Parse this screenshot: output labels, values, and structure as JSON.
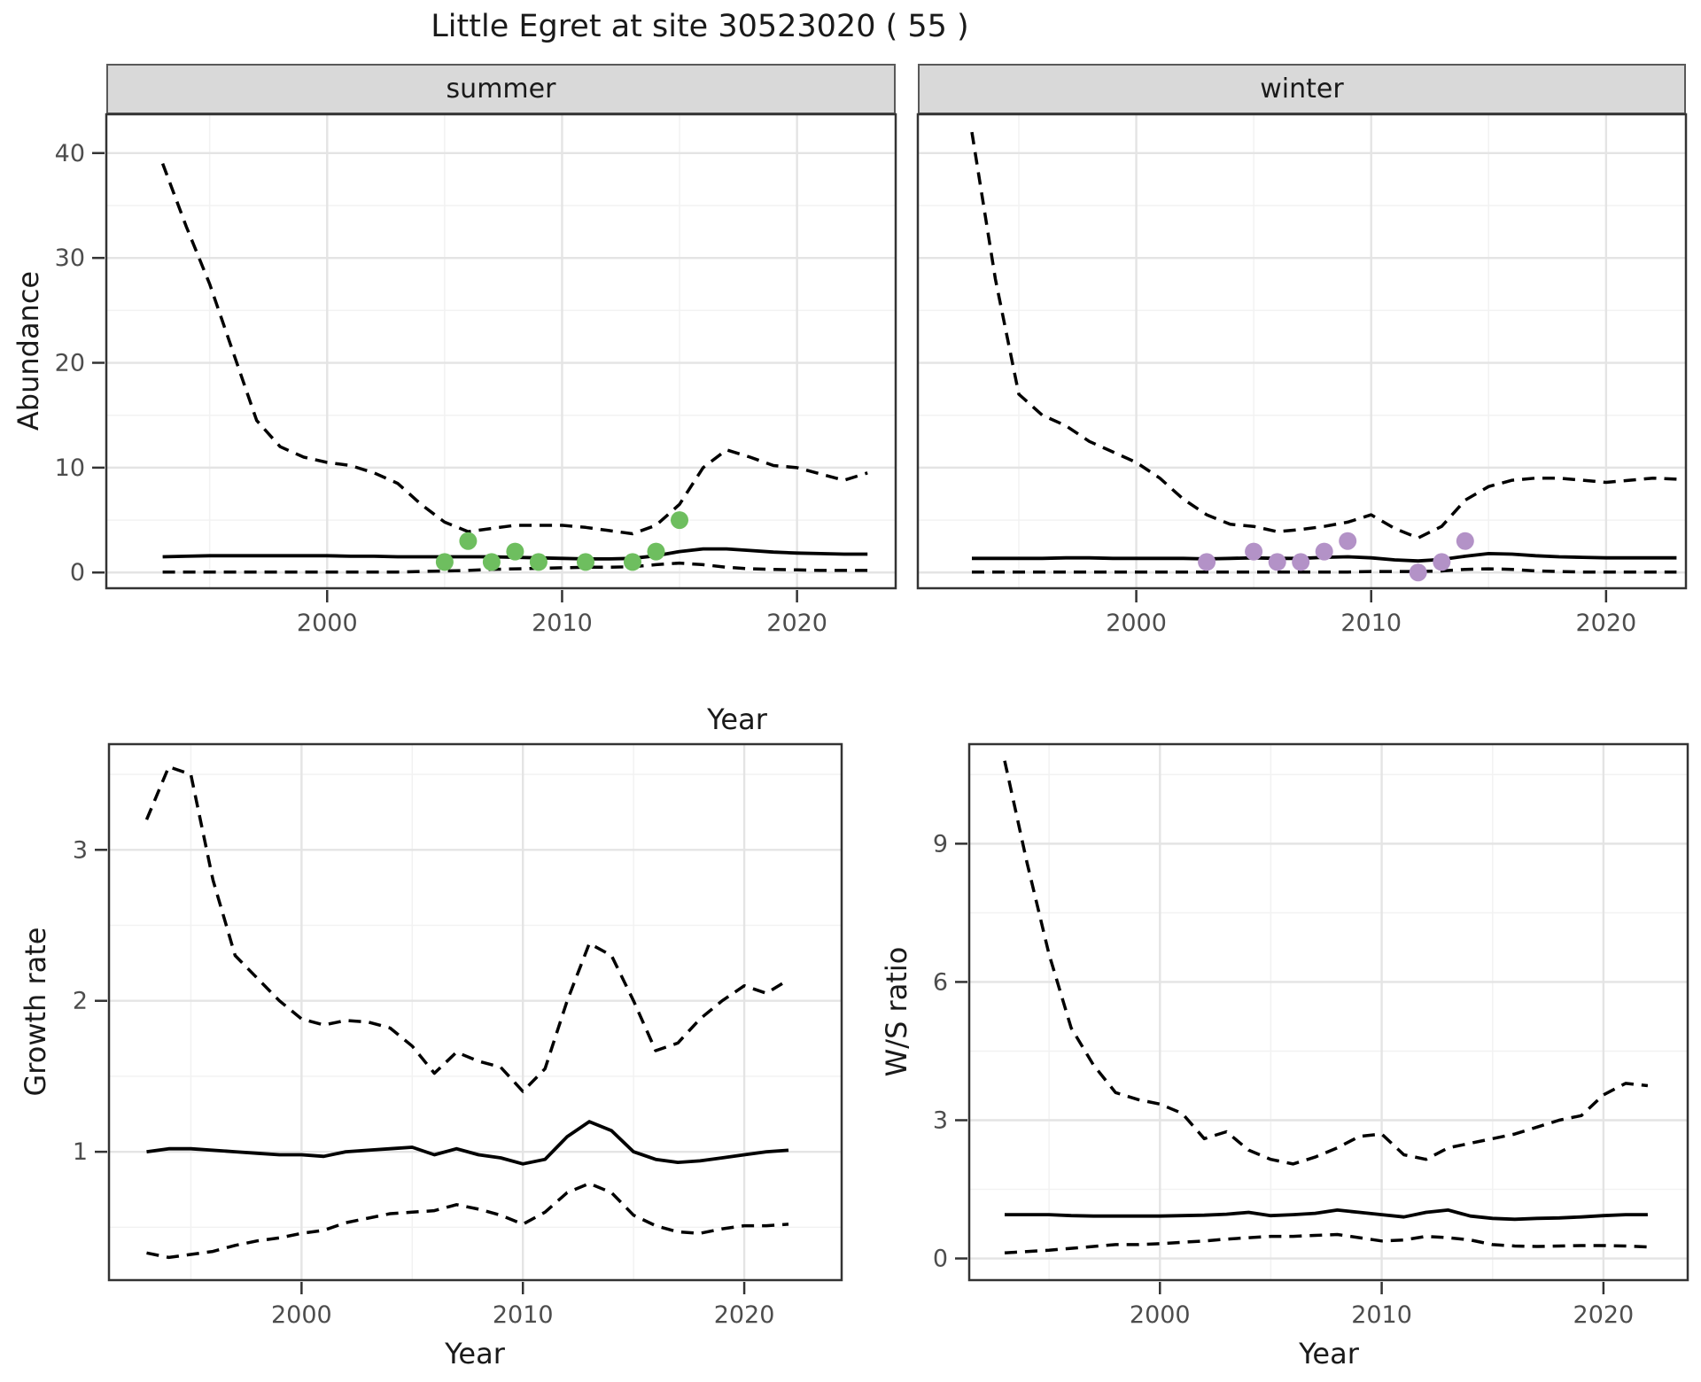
{
  "title": "Little Egret at site 30523020 ( 55 )",
  "axes": {
    "year_label": "Year",
    "abundance_label": "Abundance"
  },
  "colors": {
    "background": "#FFFFFF",
    "line": "#000000",
    "grid_major": "#E4E4E4",
    "grid_minor": "#F2F2F2",
    "strip_bg": "#D9D9D9",
    "panel_border": "#333333",
    "tick_mark": "#333333",
    "tick_label": "#4D4D4D",
    "text": "#1A1A1A",
    "summer_point": "#6EBE5F",
    "winter_point": "#B392C7"
  },
  "chart_data": [
    {
      "id": "abundance-summer",
      "type": "line",
      "facet": "summer",
      "xlabel": "Year",
      "ylabel": "Abundance",
      "years": [
        1993,
        1994,
        1995,
        1996,
        1997,
        1998,
        1999,
        2000,
        2001,
        2002,
        2003,
        2004,
        2005,
        2006,
        2007,
        2008,
        2009,
        2010,
        2011,
        2012,
        2013,
        2014,
        2015,
        2016,
        2017,
        2018,
        2019,
        2020,
        2021,
        2022,
        2023
      ],
      "series": [
        {
          "name": "lower_ci",
          "style": "dashed",
          "values": [
            0.05,
            0.05,
            0.05,
            0.05,
            0.05,
            0.05,
            0.05,
            0.05,
            0.05,
            0.05,
            0.05,
            0.1,
            0.15,
            0.2,
            0.3,
            0.35,
            0.4,
            0.45,
            0.5,
            0.5,
            0.55,
            0.75,
            0.9,
            0.75,
            0.5,
            0.35,
            0.3,
            0.25,
            0.2,
            0.2,
            0.2
          ]
        },
        {
          "name": "upper_ci",
          "style": "dashed",
          "values": [
            39,
            33,
            27.5,
            21,
            14.5,
            12,
            11,
            10.5,
            10.2,
            9.5,
            8.5,
            6.5,
            4.8,
            3.9,
            4.2,
            4.5,
            4.5,
            4.5,
            4.3,
            4.0,
            3.7,
            4.5,
            6.5,
            10,
            11.7,
            11,
            10.2,
            10,
            9.4,
            8.8,
            9.5
          ]
        },
        {
          "name": "median",
          "style": "solid",
          "values": [
            1.5,
            1.55,
            1.6,
            1.6,
            1.6,
            1.6,
            1.6,
            1.6,
            1.55,
            1.55,
            1.5,
            1.5,
            1.5,
            1.5,
            1.5,
            1.45,
            1.4,
            1.35,
            1.3,
            1.3,
            1.35,
            1.6,
            2.0,
            2.25,
            2.25,
            2.1,
            1.95,
            1.85,
            1.8,
            1.75,
            1.75
          ]
        }
      ],
      "points": {
        "name": "observed-count",
        "color_key": "summer_point",
        "years": [
          2005,
          2006,
          2007,
          2008,
          2009,
          2011,
          2013,
          2014,
          2015
        ],
        "values": [
          1,
          3,
          1,
          2,
          1,
          1,
          1,
          2,
          5
        ]
      },
      "xticks": [
        2000,
        2010,
        2020
      ],
      "yticks": [
        0,
        10,
        20,
        30,
        40
      ],
      "minor_xticks": [
        1995,
        2005,
        2015
      ],
      "minor_yticks": [
        5,
        15,
        25,
        35
      ],
      "xlim": [
        1990.6,
        2024.2
      ],
      "ylim": [
        -1.5,
        43.7
      ],
      "grid": true,
      "legend": "none"
    },
    {
      "id": "abundance-winter",
      "type": "line",
      "facet": "winter",
      "xlabel": "Year",
      "ylabel": "Abundance",
      "years": [
        1993,
        1994,
        1995,
        1996,
        1997,
        1998,
        1999,
        2000,
        2001,
        2002,
        2003,
        2004,
        2005,
        2006,
        2007,
        2008,
        2009,
        2010,
        2011,
        2012,
        2013,
        2014,
        2015,
        2016,
        2017,
        2018,
        2019,
        2020,
        2021,
        2022,
        2023
      ],
      "series": [
        {
          "name": "lower_ci",
          "style": "dashed",
          "values": [
            0.05,
            0.05,
            0.05,
            0.05,
            0.05,
            0.05,
            0.05,
            0.05,
            0.05,
            0.05,
            0.05,
            0.05,
            0.05,
            0.05,
            0.05,
            0.05,
            0.05,
            0.1,
            0.1,
            0.1,
            0.15,
            0.3,
            0.35,
            0.3,
            0.15,
            0.1,
            0.05,
            0.05,
            0.05,
            0.05,
            0.05
          ]
        },
        {
          "name": "upper_ci",
          "style": "dashed",
          "values": [
            42,
            28,
            17,
            15,
            14,
            12.5,
            11.5,
            10.5,
            9,
            7,
            5.5,
            4.6,
            4.4,
            3.9,
            4.1,
            4.4,
            4.8,
            5.5,
            4.2,
            3.3,
            4.4,
            6.9,
            8.2,
            8.8,
            9.0,
            9.0,
            8.8,
            8.6,
            8.8,
            9.0,
            8.9
          ]
        },
        {
          "name": "median",
          "style": "solid",
          "values": [
            1.35,
            1.35,
            1.35,
            1.35,
            1.4,
            1.4,
            1.35,
            1.35,
            1.35,
            1.35,
            1.3,
            1.35,
            1.4,
            1.35,
            1.35,
            1.45,
            1.5,
            1.4,
            1.2,
            1.1,
            1.25,
            1.55,
            1.8,
            1.75,
            1.6,
            1.5,
            1.45,
            1.4,
            1.4,
            1.4,
            1.4
          ]
        }
      ],
      "points": {
        "name": "observed-count",
        "color_key": "winter_point",
        "years": [
          2003,
          2005,
          2006,
          2007,
          2008,
          2009,
          2012,
          2013,
          2014
        ],
        "values": [
          1,
          2,
          1,
          1,
          2,
          3,
          0,
          1,
          3
        ]
      },
      "xticks": [
        2000,
        2010,
        2020
      ],
      "yticks": [
        0,
        10,
        20,
        30,
        40
      ],
      "minor_xticks": [
        1995,
        2005,
        2015
      ],
      "minor_yticks": [
        5,
        15,
        25,
        35
      ],
      "xlim": [
        1990.7,
        2023.4
      ],
      "ylim": [
        -1.5,
        43.7
      ],
      "grid": true,
      "legend": "none"
    },
    {
      "id": "growth-rate",
      "type": "line",
      "facet": "",
      "xlabel": "Year",
      "ylabel": "Growth rate",
      "years": [
        1993,
        1994,
        1995,
        1996,
        1997,
        1998,
        1999,
        2000,
        2001,
        2002,
        2003,
        2004,
        2005,
        2006,
        2007,
        2008,
        2009,
        2010,
        2011,
        2012,
        2013,
        2014,
        2015,
        2016,
        2017,
        2018,
        2019,
        2020,
        2021,
        2022
      ],
      "series": [
        {
          "name": "lower_ci",
          "style": "dashed",
          "values": [
            0.33,
            0.3,
            0.32,
            0.34,
            0.38,
            0.41,
            0.43,
            0.46,
            0.48,
            0.53,
            0.56,
            0.59,
            0.6,
            0.61,
            0.65,
            0.62,
            0.58,
            0.52,
            0.6,
            0.73,
            0.79,
            0.73,
            0.58,
            0.51,
            0.47,
            0.46,
            0.49,
            0.51,
            0.51,
            0.52
          ]
        },
        {
          "name": "upper_ci",
          "style": "dashed",
          "values": [
            3.2,
            3.55,
            3.5,
            2.8,
            2.3,
            2.15,
            2.0,
            1.88,
            1.84,
            1.87,
            1.86,
            1.82,
            1.7,
            1.52,
            1.66,
            1.6,
            1.56,
            1.4,
            1.55,
            2.0,
            2.38,
            2.3,
            2.0,
            1.67,
            1.72,
            1.88,
            2.0,
            2.1,
            2.05,
            2.14
          ]
        },
        {
          "name": "median",
          "style": "solid",
          "values": [
            1.0,
            1.02,
            1.02,
            1.01,
            1.0,
            0.99,
            0.98,
            0.98,
            0.97,
            1.0,
            1.01,
            1.02,
            1.03,
            0.98,
            1.02,
            0.98,
            0.96,
            0.92,
            0.95,
            1.1,
            1.2,
            1.14,
            1.0,
            0.95,
            0.93,
            0.94,
            0.96,
            0.98,
            1.0,
            1.01
          ]
        }
      ],
      "points": null,
      "xticks": [
        2000,
        2010,
        2020
      ],
      "yticks": [
        1,
        2,
        3
      ],
      "minor_xticks": [
        1995,
        2005,
        2015
      ],
      "minor_yticks": [
        0.5,
        1.5,
        2.5,
        3.5
      ],
      "xlim": [
        1991.3,
        2024.4
      ],
      "ylim": [
        0.15,
        3.7
      ],
      "grid": true,
      "legend": "none"
    },
    {
      "id": "ws-ratio",
      "type": "line",
      "facet": "",
      "xlabel": "Year",
      "ylabel": "W/S ratio",
      "years": [
        1993,
        1994,
        1995,
        1996,
        1997,
        1998,
        1999,
        2000,
        2001,
        2002,
        2003,
        2004,
        2005,
        2006,
        2007,
        2008,
        2009,
        2010,
        2011,
        2012,
        2013,
        2014,
        2015,
        2016,
        2017,
        2018,
        2019,
        2020,
        2021,
        2022
      ],
      "series": [
        {
          "name": "lower_ci",
          "style": "dashed",
          "values": [
            0.12,
            0.15,
            0.18,
            0.22,
            0.26,
            0.3,
            0.3,
            0.32,
            0.35,
            0.38,
            0.42,
            0.45,
            0.48,
            0.48,
            0.5,
            0.52,
            0.45,
            0.38,
            0.4,
            0.48,
            0.45,
            0.4,
            0.3,
            0.27,
            0.26,
            0.27,
            0.28,
            0.28,
            0.27,
            0.25
          ]
        },
        {
          "name": "upper_ci",
          "style": "dashed",
          "values": [
            10.8,
            8.6,
            6.6,
            5.0,
            4.2,
            3.6,
            3.45,
            3.35,
            3.15,
            2.6,
            2.75,
            2.35,
            2.15,
            2.05,
            2.2,
            2.4,
            2.65,
            2.7,
            2.25,
            2.15,
            2.4,
            2.5,
            2.6,
            2.7,
            2.85,
            3.0,
            3.1,
            3.55,
            3.8,
            3.75
          ]
        },
        {
          "name": "median",
          "style": "solid",
          "values": [
            0.95,
            0.95,
            0.95,
            0.93,
            0.92,
            0.92,
            0.92,
            0.92,
            0.93,
            0.94,
            0.96,
            1.0,
            0.93,
            0.95,
            0.98,
            1.05,
            1.0,
            0.95,
            0.9,
            1.0,
            1.05,
            0.92,
            0.87,
            0.85,
            0.87,
            0.88,
            0.9,
            0.93,
            0.95,
            0.95
          ]
        }
      ],
      "points": null,
      "xticks": [
        2000,
        2010,
        2020
      ],
      "yticks": [
        0,
        3,
        6,
        9
      ],
      "minor_xticks": [
        1995,
        2005,
        2015
      ],
      "minor_yticks": [
        1.5,
        4.5,
        7.5,
        10.5
      ],
      "xlim": [
        1991.4,
        2023.8
      ],
      "ylim": [
        -0.47,
        11.16
      ],
      "grid": true,
      "legend": "none"
    }
  ]
}
